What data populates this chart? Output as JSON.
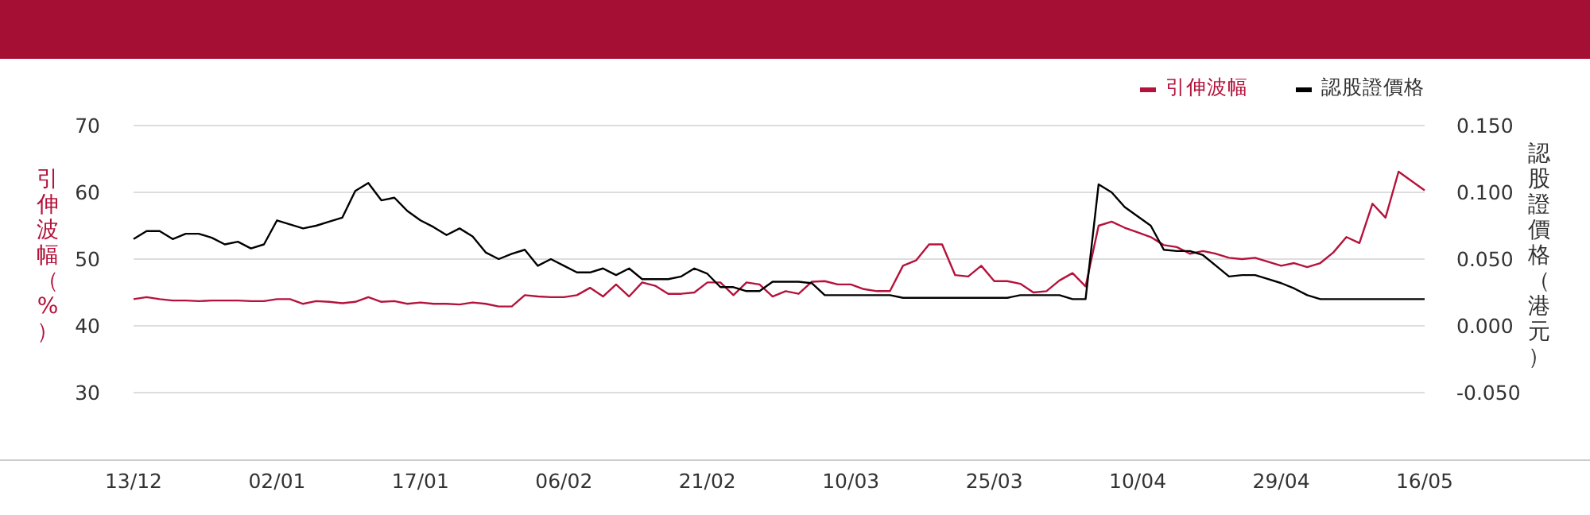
{
  "chart_data": {
    "type": "line",
    "ylabel": "引伸波幅（%）",
    "y2label": "認股證價格（港元）",
    "categories": [
      "13/12",
      null,
      null,
      null,
      null,
      null,
      null,
      null,
      null,
      null,
      null,
      "02/01",
      null,
      null,
      null,
      null,
      null,
      null,
      null,
      null,
      null,
      null,
      "17/01",
      null,
      null,
      null,
      null,
      null,
      null,
      null,
      null,
      null,
      null,
      "06/02",
      null,
      null,
      null,
      null,
      null,
      null,
      null,
      null,
      null,
      null,
      "21/02",
      null,
      null,
      null,
      null,
      null,
      null,
      null,
      null,
      null,
      null,
      "10/03",
      null,
      null,
      null,
      null,
      null,
      null,
      null,
      null,
      null,
      null,
      "25/03",
      null,
      null,
      null,
      null,
      null,
      null,
      null,
      null,
      null,
      null,
      "10/04",
      null,
      null,
      null,
      null,
      null,
      null,
      null,
      null,
      null,
      null,
      "29/04",
      null,
      null,
      null,
      null,
      null,
      null,
      null,
      null,
      null,
      null,
      "16/05"
    ],
    "series": [
      {
        "name": "引伸波幅",
        "color": "#b5123b",
        "values": [
          44.0,
          44.3,
          44.0,
          43.8,
          43.8,
          43.7,
          43.8,
          43.8,
          43.8,
          43.7,
          43.7,
          44.0,
          44.0,
          43.3,
          43.7,
          43.6,
          43.4,
          43.6,
          44.3,
          43.6,
          43.7,
          43.3,
          43.5,
          43.3,
          43.3,
          43.2,
          43.5,
          43.3,
          42.9,
          42.9,
          44.6,
          44.4,
          44.3,
          44.3,
          44.6,
          45.7,
          44.4,
          46.2,
          44.4,
          46.5,
          46.0,
          44.8,
          44.8,
          45.0,
          46.5,
          46.5,
          44.6,
          46.5,
          46.2,
          44.4,
          45.2,
          44.8,
          46.6,
          46.7,
          46.2,
          46.2,
          45.5,
          45.2,
          45.2,
          49.0,
          49.8,
          52.2,
          52.2,
          47.6,
          47.4,
          49.0,
          46.7,
          46.7,
          46.3,
          45.0,
          45.2,
          46.8,
          47.9,
          45.9,
          55.0,
          55.6,
          54.7,
          54.0,
          53.3,
          52.1,
          51.8,
          50.8,
          51.2,
          50.8,
          50.2,
          50.0,
          50.2,
          49.6,
          49.0,
          49.4,
          48.8,
          49.4,
          51.0,
          53.3,
          52.4,
          58.3,
          56.2,
          63.1,
          61.7,
          60.3
        ]
      },
      {
        "name": "認股證價格",
        "color": "#000000",
        "axis": "y2",
        "values": [
          0.065,
          0.071,
          0.071,
          0.065,
          0.069,
          0.069,
          0.066,
          0.061,
          0.063,
          0.058,
          0.061,
          0.079,
          0.076,
          0.073,
          0.075,
          0.078,
          0.081,
          0.101,
          0.107,
          0.094,
          0.096,
          0.086,
          0.079,
          0.074,
          0.068,
          0.073,
          0.067,
          0.055,
          0.05,
          0.054,
          0.057,
          0.045,
          0.05,
          0.045,
          0.04,
          0.04,
          0.043,
          0.038,
          0.043,
          0.035,
          0.035,
          0.035,
          0.037,
          0.043,
          0.039,
          0.029,
          0.029,
          0.026,
          0.026,
          0.033,
          0.033,
          0.033,
          0.032,
          0.023,
          0.023,
          0.023,
          0.023,
          0.023,
          0.023,
          0.021,
          0.021,
          0.021,
          0.021,
          0.021,
          0.021,
          0.021,
          0.021,
          0.021,
          0.023,
          0.023,
          0.023,
          0.023,
          0.02,
          0.02,
          0.106,
          0.1,
          0.089,
          0.082,
          0.075,
          0.057,
          0.056,
          0.056,
          0.053,
          0.045,
          0.037,
          0.038,
          0.038,
          0.035,
          0.032,
          0.028,
          0.023,
          0.02,
          0.02,
          0.02,
          0.02,
          0.02,
          0.02,
          0.02,
          0.02,
          0.02
        ]
      }
    ],
    "ylim": [
      20,
      70
    ],
    "yticks": [
      30,
      40,
      50,
      60,
      70
    ],
    "y2lim": [
      -0.1,
      0.15
    ],
    "y2ticks": [
      {
        "value": -0.05,
        "label": "-0.050"
      },
      {
        "value": 0,
        "label": "0.000"
      },
      {
        "value": 0.05,
        "label": "0.050"
      },
      {
        "value": 0.1,
        "label": "0.100"
      },
      {
        "value": 0.15,
        "label": "0.150"
      }
    ],
    "grid": "y",
    "legend": "top right",
    "marker": "none",
    "line_style": "solid"
  }
}
